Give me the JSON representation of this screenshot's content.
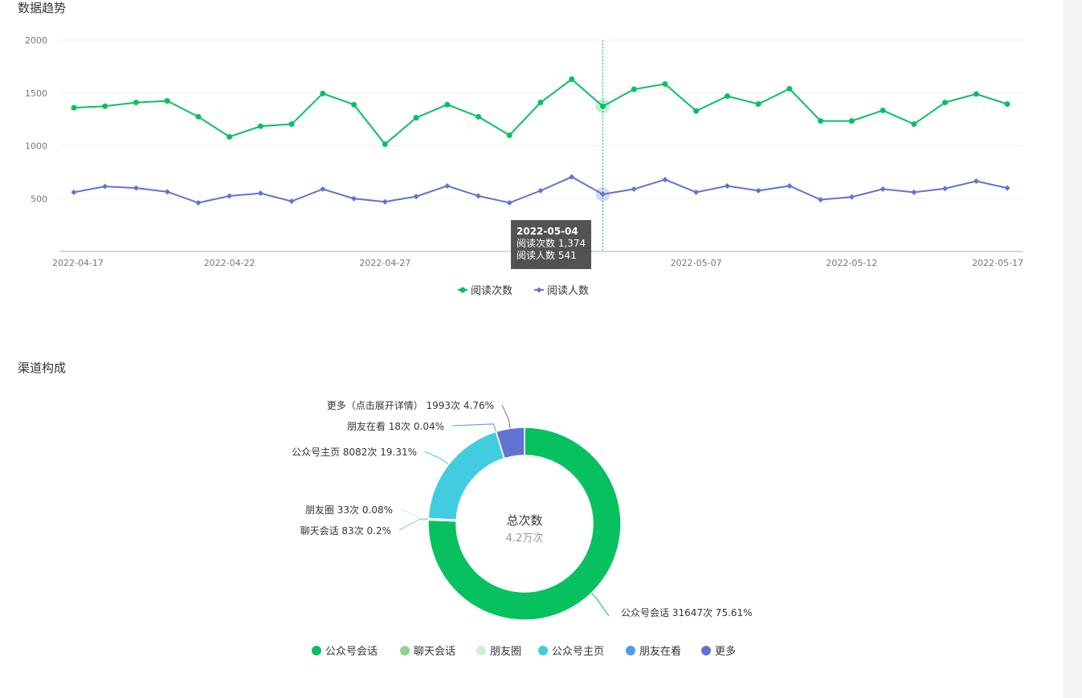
{
  "sections": {
    "trend_title": "数据趋势",
    "channel_title": "渠道构成"
  },
  "tooltip": {
    "date": "2022-05-04",
    "lines": [
      "阅读次数 1,374",
      "阅读人数 541"
    ]
  },
  "colors": {
    "reads": "#07c160",
    "readers": "#6272d0",
    "axis": "#cccccc",
    "grid": "#f0f0f0"
  },
  "chart_data": [
    {
      "type": "line",
      "title": "数据趋势",
      "x": [
        "2022-04-17",
        "2022-04-18",
        "2022-04-19",
        "2022-04-20",
        "2022-04-21",
        "2022-04-22",
        "2022-04-23",
        "2022-04-24",
        "2022-04-25",
        "2022-04-26",
        "2022-04-27",
        "2022-04-28",
        "2022-04-29",
        "2022-04-30",
        "2022-05-01",
        "2022-05-02",
        "2022-05-03",
        "2022-05-04",
        "2022-05-05",
        "2022-05-06",
        "2022-05-07",
        "2022-05-08",
        "2022-05-09",
        "2022-05-10",
        "2022-05-11",
        "2022-05-12",
        "2022-05-13",
        "2022-05-14",
        "2022-05-15",
        "2022-05-16",
        "2022-05-17"
      ],
      "x_tick_labels": [
        "2022-04-17",
        "2022-04-22",
        "2022-04-27",
        "2022-05-02",
        "2022-05-07",
        "2022-05-12",
        "2022-05-17"
      ],
      "x_tick_index": [
        0,
        5,
        10,
        15,
        20,
        25,
        30
      ],
      "y_ticks": [
        500,
        1000,
        1500,
        2000
      ],
      "ylim": [
        0,
        2000
      ],
      "grid": true,
      "legend": "bottom-center",
      "highlight_index": 17,
      "series": [
        {
          "name": "阅读次数",
          "marker": "circle",
          "values": [
            1360,
            1375,
            1410,
            1425,
            1275,
            1085,
            1185,
            1205,
            1495,
            1390,
            1015,
            1265,
            1390,
            1275,
            1100,
            1410,
            1630,
            1374,
            1535,
            1585,
            1330,
            1470,
            1395,
            1540,
            1235,
            1235,
            1335,
            1205,
            1410,
            1490,
            1395
          ]
        },
        {
          "name": "阅读人数",
          "marker": "diamond",
          "values": [
            560,
            615,
            600,
            565,
            460,
            525,
            550,
            475,
            590,
            500,
            470,
            520,
            620,
            525,
            460,
            575,
            705,
            541,
            590,
            680,
            560,
            620,
            575,
            620,
            490,
            515,
            590,
            560,
            595,
            665,
            600
          ]
        }
      ]
    },
    {
      "type": "pie",
      "title": "渠道构成",
      "center_title": "总次数",
      "center_value": "4.2万次",
      "legend": "bottom-center",
      "slices": [
        {
          "name": "公众号会话",
          "value": 31647,
          "percent": "75.61%",
          "label": "公众号会话 31647次 75.61%",
          "color": "#07c160"
        },
        {
          "name": "聊天会话",
          "value": 83,
          "percent": "0.2%",
          "label": "聊天会话 83次 0.2%",
          "color": "#8fd48f"
        },
        {
          "name": "朋友圈",
          "value": 33,
          "percent": "0.08%",
          "label": "朋友圈 33次 0.08%",
          "color": "#cdeed2"
        },
        {
          "name": "公众号主页",
          "value": 8082,
          "percent": "19.31%",
          "label": "公众号主页 8082次 19.31%",
          "color": "#42cce0"
        },
        {
          "name": "朋友在看",
          "value": 18,
          "percent": "0.04%",
          "label": "朋友在看 18次 0.04%",
          "color": "#4d9cf0"
        },
        {
          "name": "更多",
          "value": 1993,
          "percent": "4.76%",
          "label": "更多（点击展开详情） 1993次 4.76%",
          "color": "#6272d0"
        }
      ]
    }
  ]
}
